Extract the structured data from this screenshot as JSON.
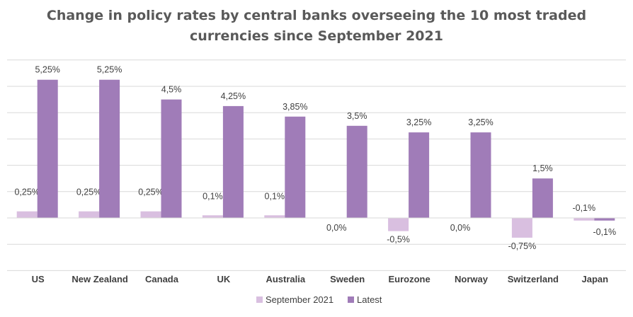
{
  "chart_data": {
    "type": "bar",
    "title": "Change in policy rates by central banks overseeing the 10 most traded currencies since September 2021",
    "title_lines": [
      "Change in policy rates by central banks overseeing the 10 most traded",
      "currencies since September 2021"
    ],
    "categories": [
      "US",
      "New Zealand",
      "Canada",
      "UK",
      "Australia",
      "Sweden",
      "Eurozone",
      "Norway",
      "Switzerland",
      "Japan"
    ],
    "series": [
      {
        "name": "September 2021",
        "color": "#d9bfe0",
        "values": [
          0.25,
          0.25,
          0.25,
          0.1,
          0.1,
          0.0,
          -0.5,
          0.0,
          -0.75,
          -0.1
        ],
        "labels": [
          "0,25%",
          "0,25%",
          "0,25%",
          "0,1%",
          "0,1%",
          "0,0%",
          "-0,5%",
          "0,0%",
          "-0,75%",
          "-0,1%"
        ]
      },
      {
        "name": "Latest",
        "color": "#a07cb8",
        "values": [
          5.25,
          5.25,
          4.5,
          4.25,
          3.85,
          3.5,
          3.25,
          3.25,
          1.5,
          -0.1
        ],
        "labels": [
          "5,25%",
          "5,25%",
          "4,5%",
          "4,25%",
          "3,85%",
          "3,5%",
          "3,25%",
          "3,25%",
          "1,5%",
          "-0,1%"
        ]
      }
    ],
    "xlabel": "",
    "ylabel": "",
    "ylim": [
      -2,
      6
    ],
    "grid": true,
    "legend": "bottom"
  }
}
